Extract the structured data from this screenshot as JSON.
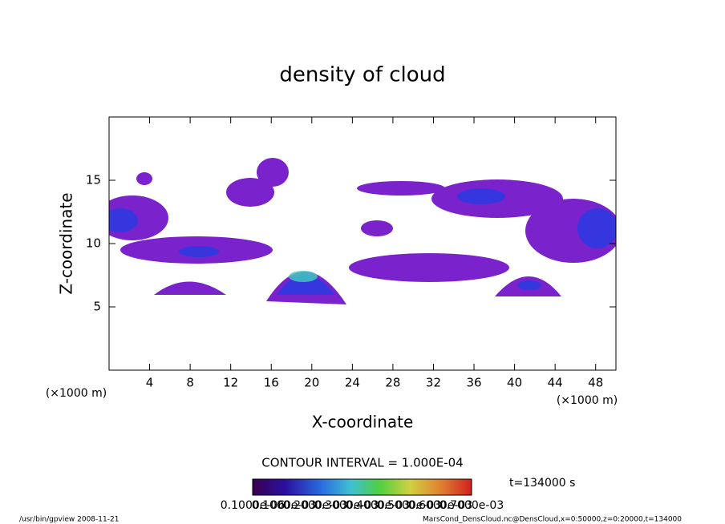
{
  "chart_data": {
    "type": "contour",
    "title": "density of cloud",
    "x_label": "X-coordinate",
    "y_label": "Z-coordinate",
    "x_unit_left": "(×1000 m)",
    "x_unit_right": "(×1000 m)",
    "xlim": [
      0,
      50
    ],
    "xticks": [
      4,
      8,
      12,
      16,
      20,
      24,
      28,
      32,
      36,
      40,
      44,
      48
    ],
    "ylim": [
      0,
      20
    ],
    "yticks": [
      5,
      10,
      15
    ],
    "contour_interval": "CONTOUR INTERVAL = 1.000E-04",
    "time_label": "t=134000 s",
    "colorbar_labels": [
      "0.1000e-06",
      "0.1000e-03",
      "0.2000e-03",
      "0.3000e-03",
      "0.4000e-03",
      "0.5000e-03",
      "0.6000e-03",
      "0.7000e-03"
    ],
    "footer_left": "/usr/bin/gpview  2008-11-21",
    "footer_right": "MarsCond_DensCloud.nc@DensCloud,x=0:50000,z=0:20000,t=134000"
  }
}
